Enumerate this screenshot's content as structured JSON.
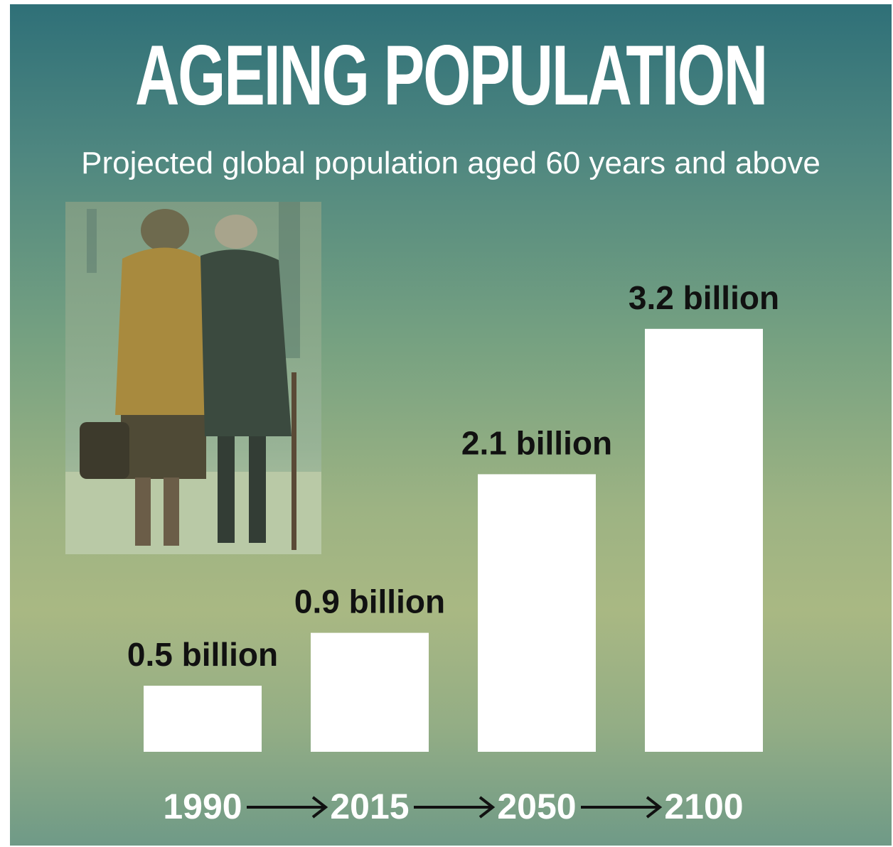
{
  "title": "AGEING POPULATION",
  "subtitle": "Projected global population aged 60 years and above",
  "photo": {
    "icon": "elderly-couple-walking-photo"
  },
  "timeline_arrow_icon": "right-arrow-icon",
  "colors": {
    "background_top": "#2f7078",
    "background_middle": "#a9b883",
    "bar": "#ffffff",
    "value_label": "#111111",
    "year_label": "#ffffff"
  },
  "chart_data": {
    "type": "bar",
    "title": "AGEING POPULATION",
    "subtitle": "Projected global population aged 60 years and above",
    "categories": [
      "1990",
      "2015",
      "2050",
      "2100"
    ],
    "values": [
      0.5,
      0.9,
      2.1,
      3.2
    ],
    "data_labels": [
      "0.5 billion",
      "0.9 billion",
      "2.1 billion",
      "3.2 billion"
    ],
    "unit": "billion",
    "xlabel": "",
    "ylabel": "",
    "ylim": [
      0,
      3.2
    ],
    "grid": false,
    "legend": "none"
  }
}
